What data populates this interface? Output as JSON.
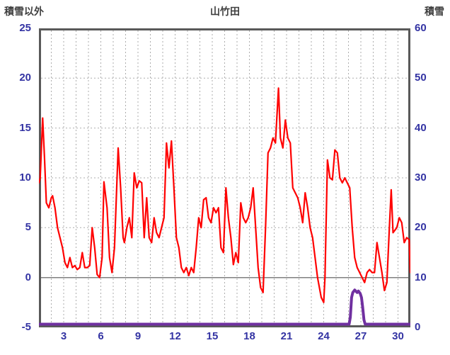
{
  "header": {
    "left_axis_title": "積雪以外",
    "title": "山竹田",
    "right_axis_title": "積雪"
  },
  "colors": {
    "temperature_line": "#FF0000",
    "snow_line": "#7030A0",
    "border": "#595959",
    "grid": "#ADADAD",
    "zero_line": "#808080",
    "axis_text": "#3333A3",
    "title_text": "#3F3F3F"
  },
  "chart_data": {
    "type": "line",
    "title": "山竹田",
    "left_axis": {
      "label": "積雪以外",
      "min": -5,
      "max": 25,
      "ticks": [
        25,
        20,
        15,
        10,
        5,
        0,
        -5
      ],
      "grid_ticks": [
        20,
        15,
        10,
        5
      ],
      "zero_line": 0
    },
    "right_axis": {
      "label": "積雪",
      "min": 0,
      "max": 60,
      "ticks": [
        60,
        50,
        40,
        30,
        20,
        10,
        0
      ]
    },
    "x_axis": {
      "min": 1,
      "max": 31,
      "tick_labels": [
        3,
        6,
        9,
        12,
        15,
        18,
        21,
        24,
        27,
        30
      ],
      "grid_interval": 1
    },
    "grid": true,
    "legend": "none",
    "series": [
      {
        "name": "積雪以外",
        "axis": "left",
        "color": "#FF0000",
        "width": 2.2,
        "points": [
          [
            1,
            9.5
          ],
          [
            1.1,
            10
          ],
          [
            1.3,
            16
          ],
          [
            1.45,
            12
          ],
          [
            1.6,
            7.5
          ],
          [
            1.8,
            7
          ],
          [
            2,
            8
          ],
          [
            2.1,
            8.2
          ],
          [
            2.3,
            7
          ],
          [
            2.5,
            5
          ],
          [
            2.7,
            4
          ],
          [
            2.9,
            3
          ],
          [
            3.1,
            1.5
          ],
          [
            3.3,
            1
          ],
          [
            3.5,
            2
          ],
          [
            3.7,
            1
          ],
          [
            3.9,
            1.2
          ],
          [
            4.1,
            0.8
          ],
          [
            4.3,
            1
          ],
          [
            4.5,
            2.5
          ],
          [
            4.7,
            1
          ],
          [
            4.9,
            1
          ],
          [
            5.1,
            1.2
          ],
          [
            5.3,
            5
          ],
          [
            5.5,
            3
          ],
          [
            5.7,
            0.3
          ],
          [
            5.9,
            0
          ],
          [
            6.1,
            2
          ],
          [
            6.25,
            9.6
          ],
          [
            6.5,
            7
          ],
          [
            6.7,
            2
          ],
          [
            6.9,
            0.5
          ],
          [
            7.1,
            3
          ],
          [
            7.4,
            13
          ],
          [
            7.6,
            9
          ],
          [
            7.8,
            4
          ],
          [
            7.9,
            3.5
          ],
          [
            8.1,
            5
          ],
          [
            8.3,
            6
          ],
          [
            8.5,
            4
          ],
          [
            8.7,
            10.5
          ],
          [
            8.9,
            9
          ],
          [
            9.1,
            9.7
          ],
          [
            9.3,
            9.5
          ],
          [
            9.5,
            4
          ],
          [
            9.7,
            8
          ],
          [
            9.9,
            4
          ],
          [
            10.1,
            3.5
          ],
          [
            10.3,
            6
          ],
          [
            10.5,
            4.5
          ],
          [
            10.7,
            4
          ],
          [
            10.9,
            5
          ],
          [
            11.1,
            6
          ],
          [
            11.3,
            13.5
          ],
          [
            11.5,
            11
          ],
          [
            11.7,
            13.7
          ],
          [
            11.9,
            9
          ],
          [
            12.1,
            4
          ],
          [
            12.3,
            3
          ],
          [
            12.5,
            1
          ],
          [
            12.7,
            0.5
          ],
          [
            12.9,
            1
          ],
          [
            13.1,
            0.2
          ],
          [
            13.3,
            1
          ],
          [
            13.5,
            0.5
          ],
          [
            13.7,
            3
          ],
          [
            13.9,
            6
          ],
          [
            14.1,
            5
          ],
          [
            14.3,
            7.8
          ],
          [
            14.5,
            8
          ],
          [
            14.7,
            6
          ],
          [
            14.9,
            5.5
          ],
          [
            15.1,
            7
          ],
          [
            15.3,
            6.5
          ],
          [
            15.5,
            7
          ],
          [
            15.7,
            3
          ],
          [
            15.9,
            2.5
          ],
          [
            16.1,
            9
          ],
          [
            16.3,
            6
          ],
          [
            16.5,
            4
          ],
          [
            16.7,
            1.3
          ],
          [
            16.9,
            2.5
          ],
          [
            17.1,
            1.5
          ],
          [
            17.3,
            7.5
          ],
          [
            17.5,
            6
          ],
          [
            17.7,
            5.5
          ],
          [
            17.9,
            6
          ],
          [
            18.1,
            7
          ],
          [
            18.3,
            9
          ],
          [
            18.5,
            5
          ],
          [
            18.7,
            1
          ],
          [
            18.9,
            -1
          ],
          [
            19.1,
            -1.5
          ],
          [
            19.3,
            5
          ],
          [
            19.5,
            12.5
          ],
          [
            19.7,
            13
          ],
          [
            19.9,
            14
          ],
          [
            20.1,
            13.5
          ],
          [
            20.35,
            19
          ],
          [
            20.5,
            14
          ],
          [
            20.7,
            13
          ],
          [
            20.9,
            15.8
          ],
          [
            21.1,
            14
          ],
          [
            21.3,
            13.5
          ],
          [
            21.5,
            9
          ],
          [
            21.7,
            8.5
          ],
          [
            21.9,
            8
          ],
          [
            22.1,
            7
          ],
          [
            22.3,
            5.5
          ],
          [
            22.5,
            8.5
          ],
          [
            22.7,
            7
          ],
          [
            22.9,
            5
          ],
          [
            23.1,
            4
          ],
          [
            23.3,
            2
          ],
          [
            23.5,
            0
          ],
          [
            23.8,
            -2
          ],
          [
            24,
            -2.5
          ],
          [
            24.1,
            0
          ],
          [
            24.3,
            11.8
          ],
          [
            24.5,
            10
          ],
          [
            24.7,
            9.8
          ],
          [
            24.9,
            12.8
          ],
          [
            25.1,
            12.5
          ],
          [
            25.3,
            10
          ],
          [
            25.5,
            9.5
          ],
          [
            25.7,
            10
          ],
          [
            25.9,
            9.5
          ],
          [
            26.1,
            9
          ],
          [
            26.3,
            5
          ],
          [
            26.5,
            2
          ],
          [
            26.7,
            1
          ],
          [
            26.9,
            0.5
          ],
          [
            27.1,
            0
          ],
          [
            27.3,
            -0.5
          ],
          [
            27.5,
            0.5
          ],
          [
            27.7,
            0.8
          ],
          [
            27.9,
            0.5
          ],
          [
            28.1,
            0.5
          ],
          [
            28.3,
            3.5
          ],
          [
            28.5,
            2
          ],
          [
            28.7,
            0.5
          ],
          [
            28.9,
            -1.3
          ],
          [
            29.1,
            -0.5
          ],
          [
            29.3,
            5
          ],
          [
            29.45,
            8.8
          ],
          [
            29.6,
            4.5
          ],
          [
            29.9,
            5
          ],
          [
            30.1,
            6
          ],
          [
            30.3,
            5.5
          ],
          [
            30.5,
            3.5
          ],
          [
            30.7,
            4
          ],
          [
            30.9,
            3.8
          ],
          [
            31,
            0.5
          ]
        ]
      },
      {
        "name": "積雪",
        "axis": "right",
        "color": "#7030A0",
        "width": 4,
        "points": [
          [
            1,
            0
          ],
          [
            10,
            0
          ],
          [
            20,
            0
          ],
          [
            25.9,
            0
          ],
          [
            26.05,
            0
          ],
          [
            26.15,
            2
          ],
          [
            26.25,
            6
          ],
          [
            26.35,
            7
          ],
          [
            26.5,
            7.5
          ],
          [
            26.7,
            7
          ],
          [
            26.8,
            7.3
          ],
          [
            26.95,
            6.8
          ],
          [
            27.05,
            6
          ],
          [
            27.15,
            4
          ],
          [
            27.25,
            1.5
          ],
          [
            27.35,
            0
          ],
          [
            28,
            0
          ],
          [
            31,
            0
          ]
        ]
      }
    ]
  }
}
